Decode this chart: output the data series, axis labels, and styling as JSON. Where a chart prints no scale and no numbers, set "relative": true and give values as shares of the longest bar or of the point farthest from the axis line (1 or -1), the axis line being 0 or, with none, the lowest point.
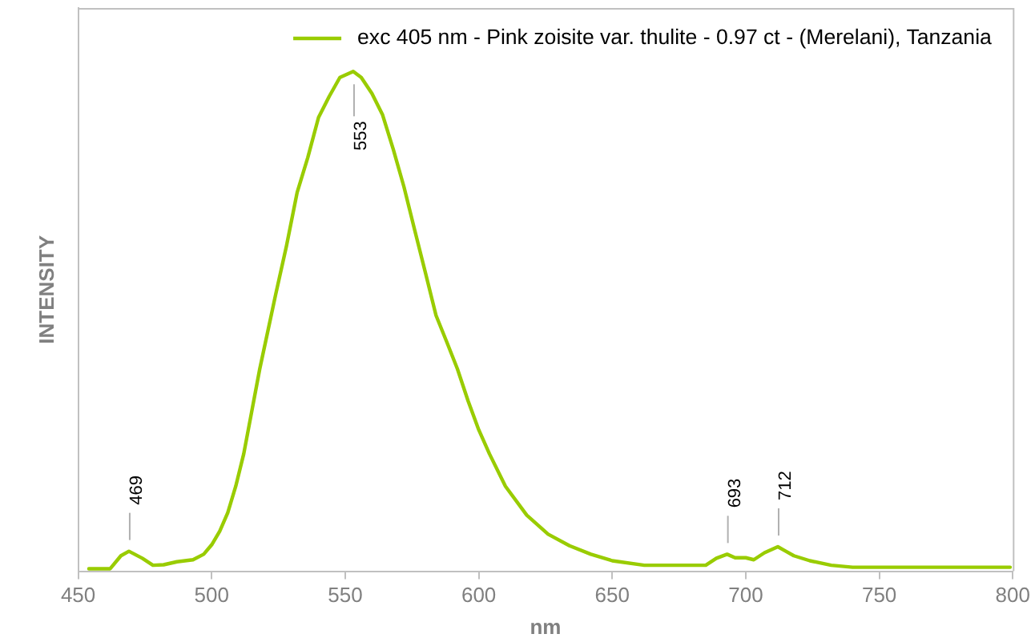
{
  "chart_data": {
    "type": "line",
    "xlabel": "nm",
    "ylabel": "INTENSITY",
    "relative": true,
    "xlim": [
      450,
      800
    ],
    "xticks": [
      450,
      500,
      550,
      600,
      650,
      700,
      750,
      800
    ],
    "legend": "top right",
    "marker": "none",
    "x": [
      454,
      462,
      466,
      469,
      474,
      478,
      482,
      487,
      493,
      497,
      500,
      503,
      506,
      509,
      512,
      515,
      518,
      521,
      524,
      528,
      532,
      536,
      540,
      544,
      548,
      553,
      556,
      560,
      564,
      568,
      572,
      576,
      580,
      584,
      588,
      592,
      596,
      600,
      604,
      610,
      618,
      626,
      634,
      642,
      650,
      662,
      685,
      689,
      693,
      696,
      700,
      703,
      707,
      712,
      715,
      718,
      724,
      732,
      740,
      799
    ],
    "series": [
      {
        "name": "exc 405 nm - Pink zoisite var. thulite - 0.97 ct - (Merelani), Tanzania",
        "color": "#99cc00",
        "values": [
          0.005,
          0.005,
          0.031,
          0.04,
          0.026,
          0.012,
          0.013,
          0.019,
          0.023,
          0.034,
          0.053,
          0.08,
          0.117,
          0.17,
          0.235,
          0.32,
          0.405,
          0.48,
          0.555,
          0.651,
          0.758,
          0.828,
          0.908,
          0.95,
          0.988,
          1,
          0.988,
          0.956,
          0.913,
          0.844,
          0.769,
          0.683,
          0.598,
          0.512,
          0.459,
          0.405,
          0.341,
          0.283,
          0.235,
          0.17,
          0.112,
          0.074,
          0.051,
          0.034,
          0.021,
          0.012,
          0.012,
          0.026,
          0.034,
          0.027,
          0.027,
          0.023,
          0.037,
          0.049,
          0.04,
          0.031,
          0.021,
          0.012,
          0.008,
          0.008
        ]
      }
    ],
    "annotations": [
      {
        "text": "469",
        "x": 469,
        "y": 0.04
      },
      {
        "text": "553",
        "x": 553,
        "y": 1
      },
      {
        "text": "693",
        "x": 693,
        "y": 0.034
      },
      {
        "text": "712",
        "x": 712,
        "y": 0.049
      }
    ]
  }
}
